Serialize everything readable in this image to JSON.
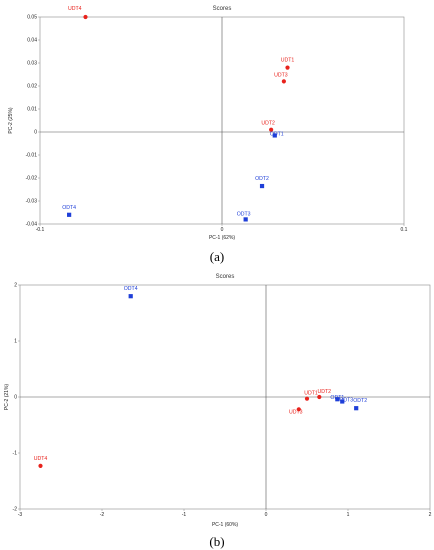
{
  "colors": {
    "red": "#e8221c",
    "blue": "#1f3fd8",
    "axis": "#555555",
    "frame": "#8c8c8c"
  },
  "chart_data": [
    {
      "type": "scatter",
      "title": "Scores",
      "xlabel": "PC-1 (62%)",
      "ylabel": "PC-2 (25%)",
      "xlim": [
        -0.1,
        0.1
      ],
      "ylim": [
        -0.04,
        0.05
      ],
      "xticks": [
        -0.1,
        0,
        0.1
      ],
      "xtick_labels": [
        "-0.1",
        "0",
        "0.1"
      ],
      "yticks": [
        -0.04,
        -0.03,
        -0.02,
        -0.01,
        0,
        0.01,
        0.02,
        0.03,
        0.04,
        0.05
      ],
      "ytick_labels": [
        "-0.04",
        "-0.03",
        "-0.02",
        "-0.01",
        "0",
        "0.01",
        "0.02",
        "0.03",
        "0.04",
        "0.05"
      ],
      "panel_label": "(a)",
      "points": [
        {
          "label": "UDT4",
          "x": -0.075,
          "y": 0.05,
          "group": "red"
        },
        {
          "label": "UDT1",
          "x": 0.036,
          "y": 0.028,
          "group": "red"
        },
        {
          "label": "UDT3",
          "x": 0.034,
          "y": 0.022,
          "group": "red"
        },
        {
          "label": "UDT2",
          "x": 0.027,
          "y": 0.001,
          "group": "red"
        },
        {
          "label": "ODT1",
          "x": 0.029,
          "y": -0.0015,
          "group": "blue"
        },
        {
          "label": "ODT2",
          "x": 0.022,
          "y": -0.0235,
          "group": "blue"
        },
        {
          "label": "ODT3",
          "x": 0.013,
          "y": -0.038,
          "group": "blue"
        },
        {
          "label": "ODT4",
          "x": -0.084,
          "y": -0.036,
          "group": "blue"
        }
      ]
    },
    {
      "type": "scatter",
      "title": "Scores",
      "xlabel": "PC-1 (60%)",
      "ylabel": "PC-2 (21%)",
      "xlim": [
        -3,
        2
      ],
      "ylim": [
        -2,
        2
      ],
      "xticks": [
        -3,
        -2,
        -1,
        0,
        1,
        2
      ],
      "xtick_labels": [
        "-3",
        "-2",
        "-1",
        "0",
        "1",
        "2"
      ],
      "yticks": [
        -2,
        -1,
        0,
        1,
        2
      ],
      "ytick_labels": [
        "-2",
        "-1",
        "0",
        "1",
        "2"
      ],
      "panel_label": "(b)",
      "points": [
        {
          "label": "ODT4",
          "x": -1.65,
          "y": 1.8,
          "group": "blue"
        },
        {
          "label": "UDT4",
          "x": -2.75,
          "y": -1.23,
          "group": "red"
        },
        {
          "label": "UDT1",
          "x": 0.5,
          "y": -0.03,
          "group": "red"
        },
        {
          "label": "UDT2",
          "x": 0.65,
          "y": 0.0,
          "group": "red"
        },
        {
          "label": "UDT3",
          "x": 0.4,
          "y": -0.22,
          "group": "red"
        },
        {
          "label": "ODT1",
          "x": 0.87,
          "y": -0.04,
          "group": "blue"
        },
        {
          "label": "ODT3",
          "x": 0.93,
          "y": -0.08,
          "group": "blue"
        },
        {
          "label": "ODT2",
          "x": 1.1,
          "y": -0.2,
          "group": "blue"
        }
      ]
    }
  ]
}
